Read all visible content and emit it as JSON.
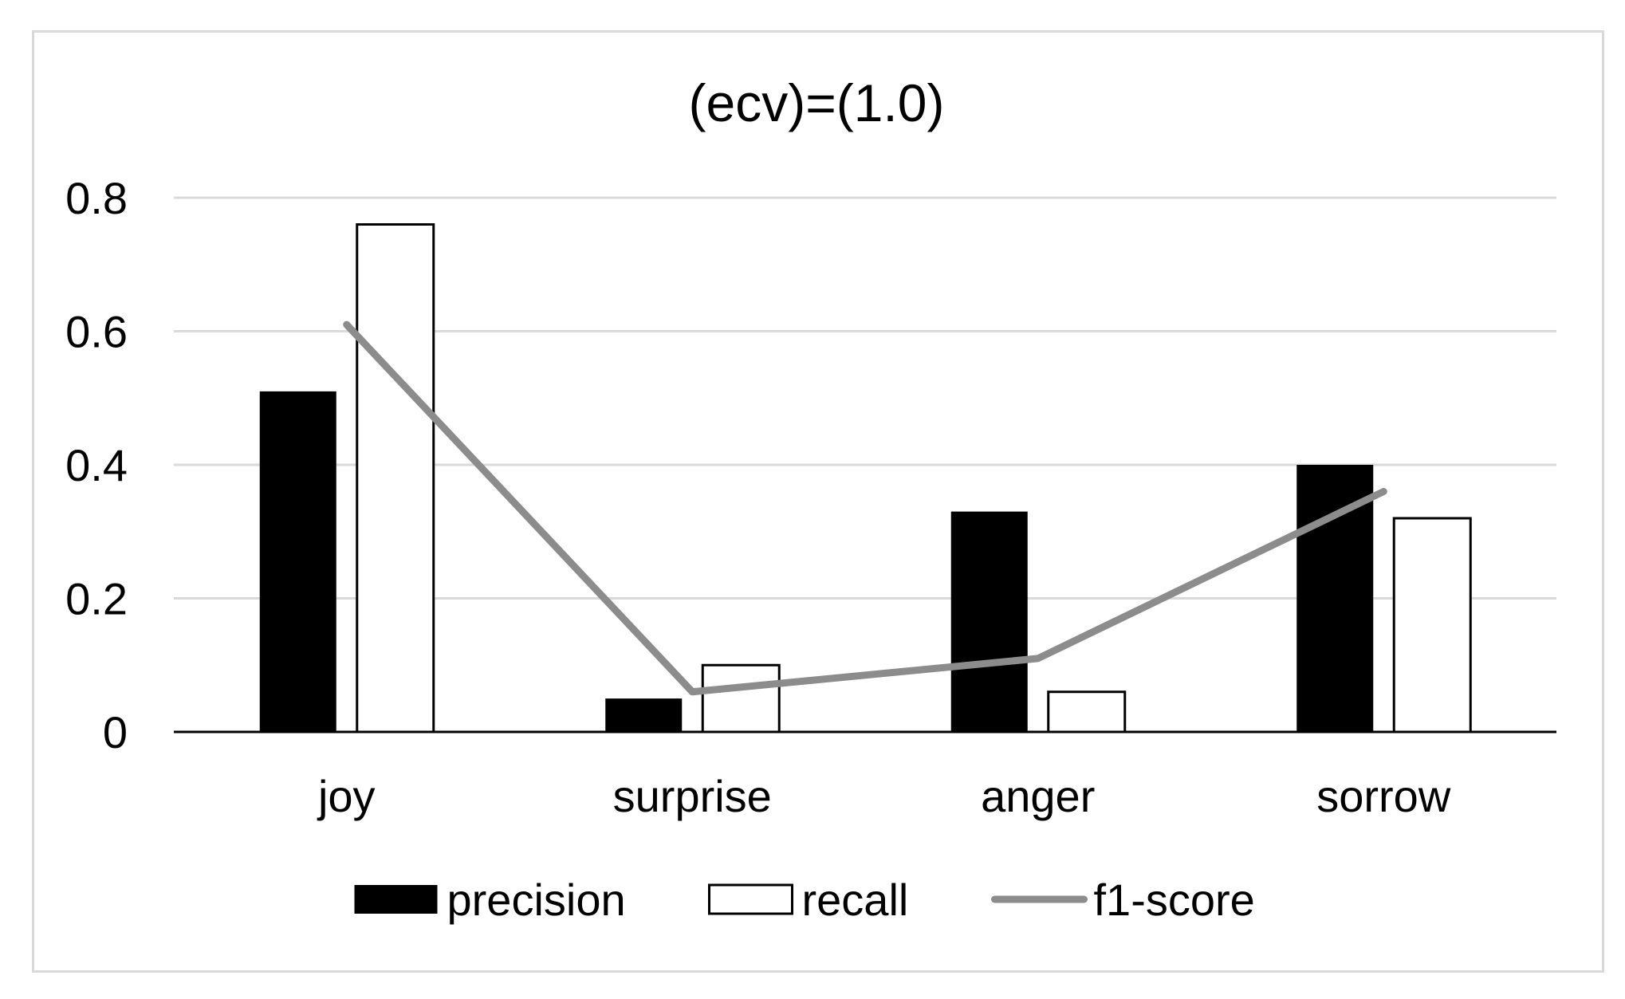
{
  "chart_data": {
    "type": "bar",
    "title": "(ecv)=(1.0)",
    "xlabel": "",
    "ylabel": "",
    "categories": [
      "joy",
      "surprise",
      "anger",
      "sorrow"
    ],
    "series": [
      {
        "name": "precision",
        "kind": "bar",
        "style": "filled",
        "color": "#000000",
        "values": [
          0.51,
          0.05,
          0.33,
          0.4
        ]
      },
      {
        "name": "recall",
        "kind": "bar",
        "style": "outline",
        "color": "#000000",
        "values": [
          0.76,
          0.1,
          0.06,
          0.32
        ]
      },
      {
        "name": "f1-score",
        "kind": "line",
        "color": "#8c8c8c",
        "values": [
          0.61,
          0.06,
          0.11,
          0.36
        ]
      }
    ],
    "ylim": [
      0,
      0.8
    ],
    "yticks": [
      0,
      0.2,
      0.4,
      0.6,
      0.8
    ],
    "ytick_labels": [
      "0",
      "0.2",
      "0.4",
      "0.6",
      "0.8"
    ],
    "grid": "horizontal",
    "gridline_color": "#d9d9d9",
    "legend_position": "bottom"
  }
}
